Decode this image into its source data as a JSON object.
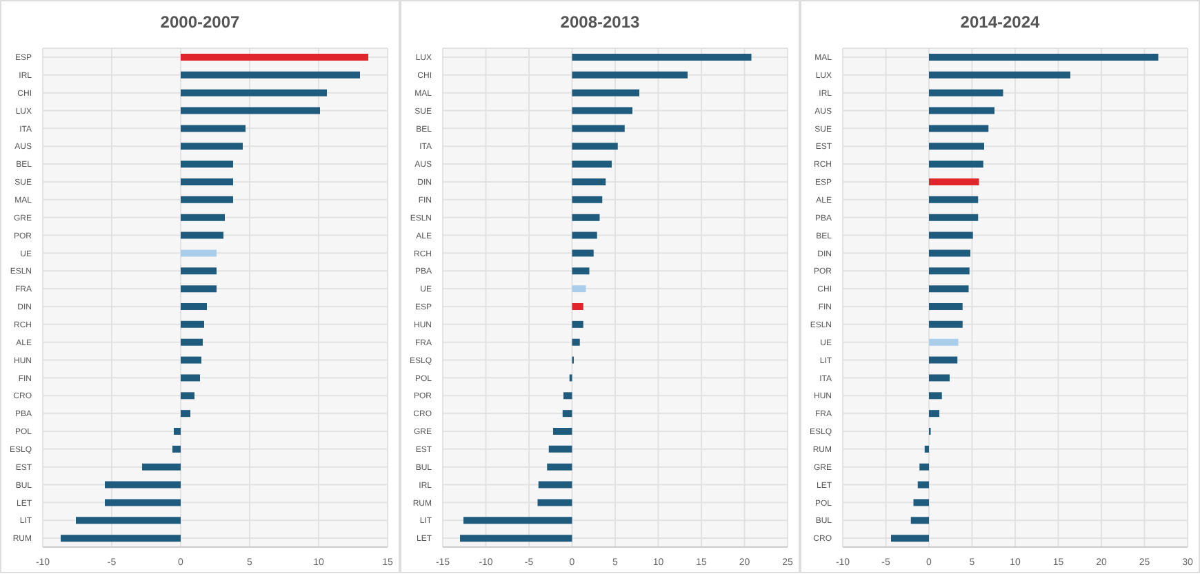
{
  "chart_data": [
    {
      "type": "bar",
      "orientation": "horizontal",
      "title": "2000-2007",
      "grid": true,
      "xlim": [
        -10,
        15
      ],
      "xticks": [
        -10,
        -5,
        0,
        5,
        10,
        15
      ],
      "categories": [
        "ESP",
        "IRL",
        "CHI",
        "LUX",
        "ITA",
        "AUS",
        "BEL",
        "SUE",
        "MAL",
        "GRE",
        "POR",
        "UE",
        "ESLN",
        "FRA",
        "DIN",
        "RCH",
        "ALE",
        "HUN",
        "FIN",
        "CRO",
        "PBA",
        "POL",
        "ESLQ",
        "EST",
        "BUL",
        "LET",
        "LIT",
        "RUM"
      ],
      "values": [
        13.6,
        13.0,
        10.6,
        10.1,
        4.7,
        4.5,
        3.8,
        3.8,
        3.8,
        3.2,
        3.1,
        2.6,
        2.6,
        2.6,
        1.9,
        1.7,
        1.6,
        1.5,
        1.4,
        1.0,
        0.7,
        -0.5,
        -0.6,
        -2.8,
        -5.5,
        -5.5,
        -7.6,
        -8.7
      ],
      "colors": [
        "#e0262c",
        "#1f5b7d",
        "#1f5b7d",
        "#1f5b7d",
        "#1f5b7d",
        "#1f5b7d",
        "#1f5b7d",
        "#1f5b7d",
        "#1f5b7d",
        "#1f5b7d",
        "#1f5b7d",
        "#a9cdea",
        "#1f5b7d",
        "#1f5b7d",
        "#1f5b7d",
        "#1f5b7d",
        "#1f5b7d",
        "#1f5b7d",
        "#1f5b7d",
        "#1f5b7d",
        "#1f5b7d",
        "#1f5b7d",
        "#1f5b7d",
        "#1f5b7d",
        "#1f5b7d",
        "#1f5b7d",
        "#1f5b7d",
        "#1f5b7d"
      ]
    },
    {
      "type": "bar",
      "orientation": "horizontal",
      "title": "2008-2013",
      "grid": true,
      "xlim": [
        -15,
        25
      ],
      "xticks": [
        -15,
        -10,
        -5,
        0,
        5,
        10,
        15,
        20,
        25
      ],
      "categories": [
        "LUX",
        "CHI",
        "MAL",
        "SUE",
        "BEL",
        "ITA",
        "AUS",
        "DIN",
        "FIN",
        "ESLN",
        "ALE",
        "RCH",
        "PBA",
        "UE",
        "ESP",
        "HUN",
        "FRA",
        "ESLQ",
        "POL",
        "POR",
        "CRO",
        "GRE",
        "EST",
        "BUL",
        "IRL",
        "RUM",
        "LIT",
        "LET"
      ],
      "values": [
        20.8,
        13.4,
        7.8,
        7.0,
        6.1,
        5.3,
        4.6,
        3.9,
        3.5,
        3.2,
        2.9,
        2.5,
        2.0,
        1.6,
        1.3,
        1.3,
        0.9,
        0.2,
        -0.3,
        -1.0,
        -1.1,
        -2.2,
        -2.7,
        -2.9,
        -3.9,
        -4.0,
        -12.6,
        -13.0
      ],
      "colors": [
        "#1f5b7d",
        "#1f5b7d",
        "#1f5b7d",
        "#1f5b7d",
        "#1f5b7d",
        "#1f5b7d",
        "#1f5b7d",
        "#1f5b7d",
        "#1f5b7d",
        "#1f5b7d",
        "#1f5b7d",
        "#1f5b7d",
        "#1f5b7d",
        "#a9cdea",
        "#e0262c",
        "#1f5b7d",
        "#1f5b7d",
        "#1f5b7d",
        "#1f5b7d",
        "#1f5b7d",
        "#1f5b7d",
        "#1f5b7d",
        "#1f5b7d",
        "#1f5b7d",
        "#1f5b7d",
        "#1f5b7d",
        "#1f5b7d",
        "#1f5b7d"
      ]
    },
    {
      "type": "bar",
      "orientation": "horizontal",
      "title": "2014-2024",
      "grid": true,
      "xlim": [
        -10,
        30
      ],
      "xticks": [
        -10,
        -5,
        0,
        5,
        10,
        15,
        20,
        25,
        30
      ],
      "categories": [
        "MAL",
        "LUX",
        "IRL",
        "AUS",
        "SUE",
        "EST",
        "RCH",
        "ESP",
        "ALE",
        "PBA",
        "BEL",
        "DIN",
        "POR",
        "CHI",
        "FIN",
        "ESLN",
        "UE",
        "LIT",
        "ITA",
        "HUN",
        "FRA",
        "ESLQ",
        "RUM",
        "GRE",
        "LET",
        "POL",
        "BUL",
        "CRO"
      ],
      "values": [
        26.6,
        16.4,
        8.6,
        7.6,
        6.9,
        6.4,
        6.3,
        5.8,
        5.7,
        5.7,
        5.1,
        4.8,
        4.7,
        4.6,
        3.9,
        3.9,
        3.4,
        3.3,
        2.4,
        1.5,
        1.2,
        0.2,
        -0.5,
        -1.1,
        -1.3,
        -1.8,
        -2.1,
        -4.4
      ],
      "colors": [
        "#1f5b7d",
        "#1f5b7d",
        "#1f5b7d",
        "#1f5b7d",
        "#1f5b7d",
        "#1f5b7d",
        "#1f5b7d",
        "#e0262c",
        "#1f5b7d",
        "#1f5b7d",
        "#1f5b7d",
        "#1f5b7d",
        "#1f5b7d",
        "#1f5b7d",
        "#1f5b7d",
        "#1f5b7d",
        "#a9cdea",
        "#1f5b7d",
        "#1f5b7d",
        "#1f5b7d",
        "#1f5b7d",
        "#1f5b7d",
        "#1f5b7d",
        "#1f5b7d",
        "#1f5b7d",
        "#1f5b7d",
        "#1f5b7d",
        "#1f5b7d"
      ]
    }
  ]
}
